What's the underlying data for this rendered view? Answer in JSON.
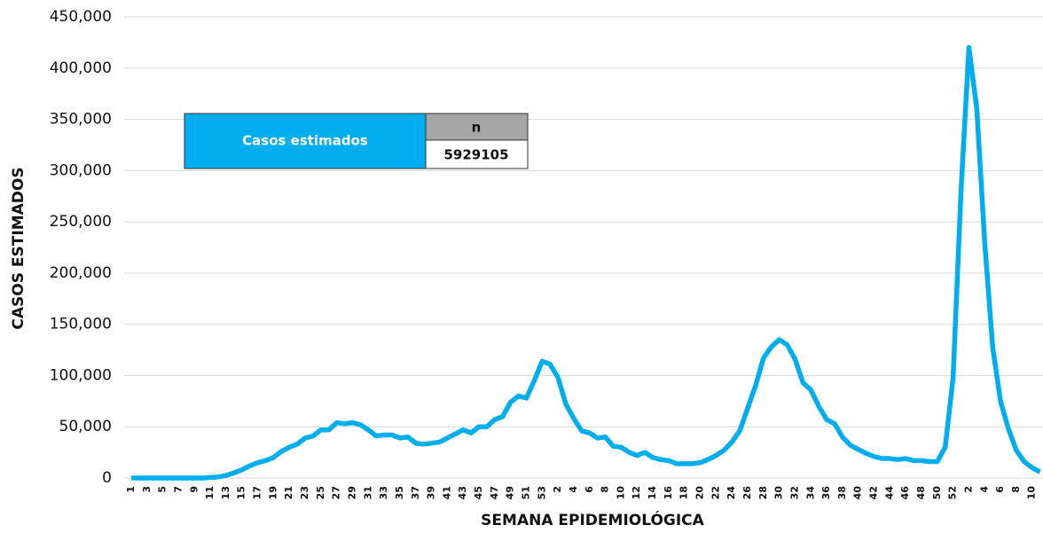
{
  "chart_data": {
    "type": "line",
    "xlabel": "SEMANA EPIDEMIOLÓGICA",
    "ylabel": "CASOS ESTIMADOS",
    "categories": [
      "1",
      null,
      "3",
      null,
      "5",
      null,
      "7",
      null,
      "9",
      null,
      "11",
      null,
      "13",
      null,
      "15",
      null,
      "17",
      null,
      "19",
      null,
      "21",
      null,
      "23",
      null,
      "25",
      null,
      "27",
      null,
      "29",
      null,
      "31",
      null,
      "33",
      null,
      "35",
      null,
      "37",
      null,
      "39",
      null,
      "41",
      null,
      "43",
      null,
      "45",
      null,
      "47",
      null,
      "49",
      null,
      "51",
      null,
      "53",
      null,
      "2",
      null,
      "4",
      null,
      "6",
      null,
      "8",
      null,
      "10",
      null,
      "12",
      null,
      "14",
      null,
      "16",
      null,
      "18",
      null,
      "20",
      null,
      "22",
      null,
      "24",
      null,
      "26",
      null,
      "28",
      null,
      "30",
      null,
      "32",
      null,
      "34",
      null,
      "36",
      null,
      "38",
      null,
      "40",
      null,
      "42",
      null,
      "44",
      null,
      "46",
      null,
      "48",
      null,
      "50",
      null,
      "52",
      null,
      "2",
      null,
      "4",
      null,
      "6",
      null,
      "8",
      null,
      "10",
      null
    ],
    "series": [
      {
        "name": "Casos estimados",
        "color": "#00aeef",
        "values": [
          0,
          0,
          0,
          0,
          0,
          0,
          0,
          0,
          0,
          0,
          500,
          1000,
          2500,
          5000,
          8000,
          12000,
          15000,
          17000,
          20000,
          26000,
          30000,
          33000,
          39000,
          41000,
          47000,
          47000,
          54000,
          53000,
          54000,
          52000,
          47000,
          41000,
          42000,
          42000,
          39000,
          40000,
          34000,
          33000,
          34000,
          35000,
          39000,
          43000,
          47000,
          44000,
          50000,
          50000,
          57000,
          60000,
          74000,
          80000,
          78000,
          95000,
          114000,
          111000,
          98000,
          72000,
          58000,
          46000,
          44000,
          39000,
          40000,
          31000,
          30000,
          25000,
          22000,
          25000,
          20000,
          18000,
          17000,
          14000,
          14000,
          14000,
          15000,
          18000,
          22000,
          27000,
          35000,
          46000,
          68000,
          90000,
          117000,
          128000,
          135000,
          130000,
          116000,
          93000,
          86000,
          70000,
          57000,
          53000,
          40000,
          32000,
          28000,
          24000,
          21000,
          19000,
          19000,
          18000,
          19000,
          17000,
          17000,
          16000,
          16000,
          30000,
          98000,
          280000,
          420000,
          360000,
          230000,
          128000,
          75000,
          48000,
          27000,
          16000,
          10000,
          6000
        ]
      }
    ],
    "ylim": [
      0,
      450000
    ],
    "yticks": [
      0,
      {
        "value": 50000,
        "label": "50,000"
      },
      {
        "value": 100000,
        "label": "100,000"
      },
      {
        "value": 150000,
        "label": "150,000"
      },
      {
        "value": 200000,
        "label": "200,000"
      },
      {
        "value": 250000,
        "label": "250,000"
      },
      {
        "value": 300000,
        "label": "300,000"
      },
      {
        "value": 350000,
        "label": "350,000"
      },
      {
        "value": 400000,
        "label": "400,000"
      },
      {
        "value": 450000,
        "label": "450,000"
      }
    ],
    "grid": true,
    "summary_table": {
      "label": "Casos estimados",
      "header": "n",
      "value": 5929105
    }
  }
}
